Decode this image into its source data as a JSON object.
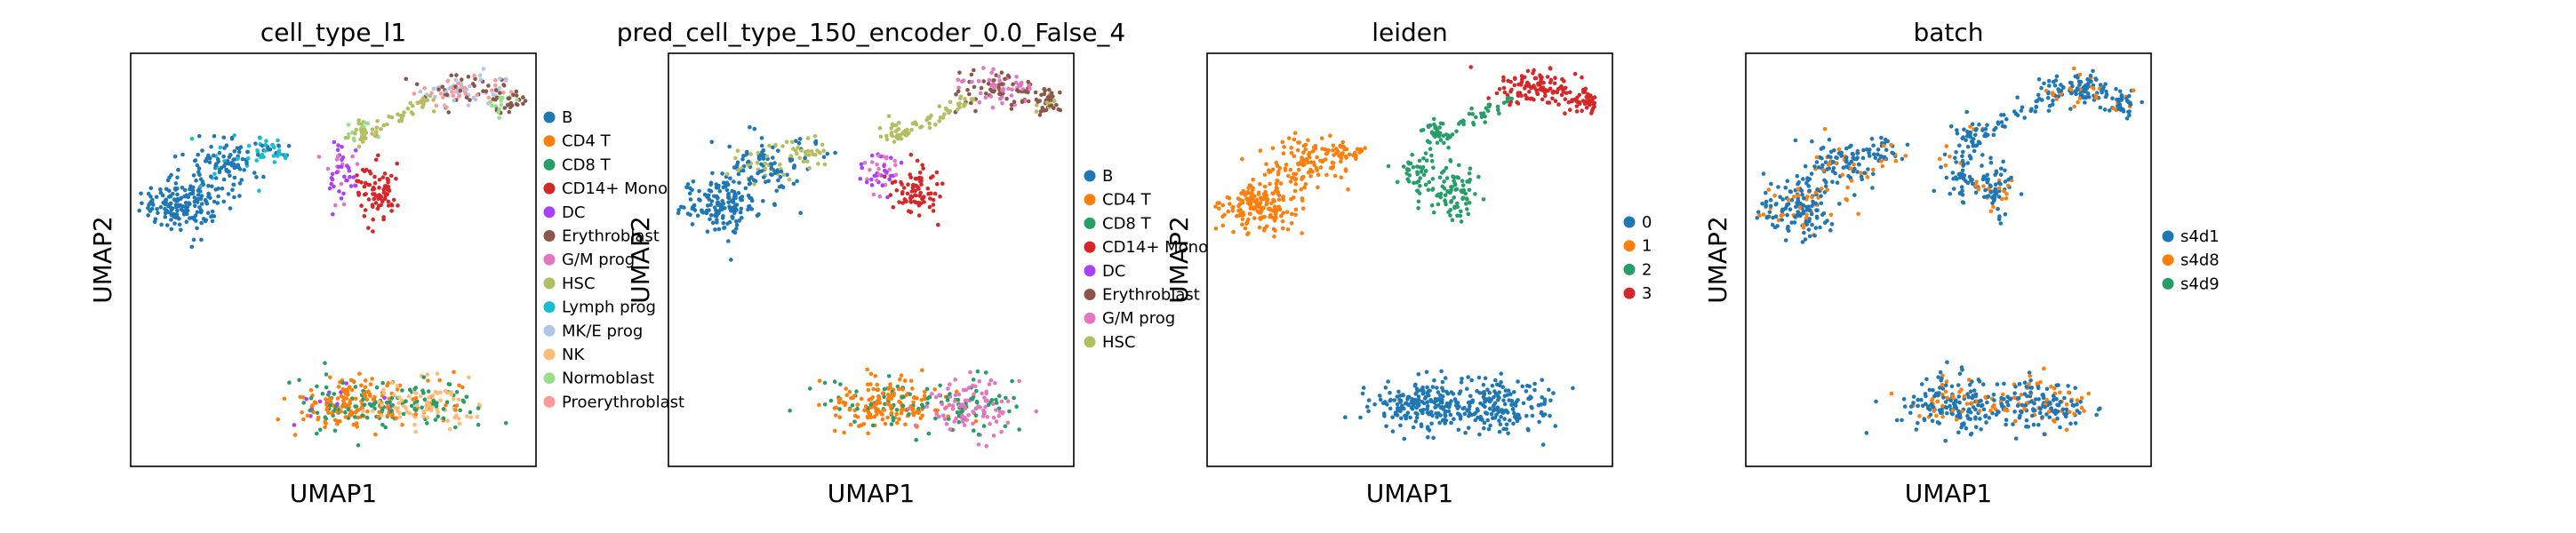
{
  "chart_data": [
    {
      "type": "scatter",
      "title": "cell_type_l1",
      "xlabel": "UMAP1",
      "ylabel": "UMAP2",
      "grid": false,
      "legend_placement": "right",
      "legend": [
        {
          "name": "B",
          "color": "#1f77b4"
        },
        {
          "name": "CD4 T",
          "color": "#ff7f0e"
        },
        {
          "name": "CD8 T",
          "color": "#279e68"
        },
        {
          "name": "CD14+ Mono",
          "color": "#d62728"
        },
        {
          "name": "DC",
          "color": "#aa40fc"
        },
        {
          "name": "Erythroblast",
          "color": "#8c564b"
        },
        {
          "name": "G/M prog",
          "color": "#e377c2"
        },
        {
          "name": "HSC",
          "color": "#b5bd61"
        },
        {
          "name": "Lymph prog",
          "color": "#17becf"
        },
        {
          "name": "MK/E prog",
          "color": "#aec7e8"
        },
        {
          "name": "NK",
          "color": "#ffbb78"
        },
        {
          "name": "Normoblast",
          "color": "#98df8a"
        },
        {
          "name": "Proerythroblast",
          "color": "#ff9896"
        }
      ]
    },
    {
      "type": "scatter",
      "title": "pred_cell_type_150_encoder_0.0_False_4",
      "xlabel": "UMAP1",
      "ylabel": "UMAP2",
      "grid": false,
      "legend_placement": "right",
      "legend": [
        {
          "name": "B",
          "color": "#1f77b4"
        },
        {
          "name": "CD4 T",
          "color": "#ff7f0e"
        },
        {
          "name": "CD8 T",
          "color": "#279e68"
        },
        {
          "name": "CD14+ Mono",
          "color": "#d62728"
        },
        {
          "name": "DC",
          "color": "#aa40fc"
        },
        {
          "name": "Erythroblast",
          "color": "#8c564b"
        },
        {
          "name": "G/M prog",
          "color": "#e377c2"
        },
        {
          "name": "HSC",
          "color": "#b5bd61"
        }
      ]
    },
    {
      "type": "scatter",
      "title": "leiden",
      "xlabel": "UMAP1",
      "ylabel": "UMAP2",
      "grid": false,
      "legend_placement": "right",
      "legend": [
        {
          "name": "0",
          "color": "#1f77b4"
        },
        {
          "name": "1",
          "color": "#ff7f0e"
        },
        {
          "name": "2",
          "color": "#279e68"
        },
        {
          "name": "3",
          "color": "#d62728"
        }
      ]
    },
    {
      "type": "scatter",
      "title": "batch",
      "xlabel": "UMAP1",
      "ylabel": "UMAP2",
      "grid": false,
      "legend_placement": "right",
      "legend": [
        {
          "name": "s4d1",
          "color": "#1f77b4"
        },
        {
          "name": "s4d8",
          "color": "#ff7f0e"
        },
        {
          "name": "s4d9",
          "color": "#279e68"
        }
      ]
    }
  ]
}
